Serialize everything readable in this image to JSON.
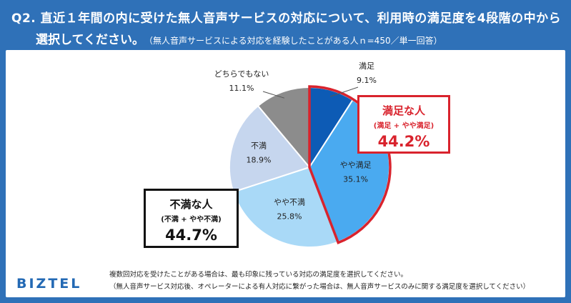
{
  "header": {
    "line1": "Q2. 直近１年間の内に受けた無人音声サービスの対応について、利用時の満足度を4段階の中から",
    "line2": "選択してください。",
    "note": "（無人音声サービスによる対応を経験したことがある人ｎ=450／単一回答）"
  },
  "chart_data": {
    "type": "pie",
    "start_angle_deg": 0,
    "direction": "clockwise",
    "slices": [
      {
        "label": "満足",
        "value": 9.1,
        "display": "9.1%",
        "color": "#0d5bb5",
        "label_outside": true
      },
      {
        "label": "やや満足",
        "value": 35.1,
        "display": "35.1%",
        "color": "#4aaaf0",
        "label_outside": false
      },
      {
        "label": "やや不満",
        "value": 25.8,
        "display": "25.8%",
        "color": "#a9d9f7",
        "label_outside": false
      },
      {
        "label": "不満",
        "value": 18.9,
        "display": "18.9%",
        "color": "#c6d6ee",
        "label_outside": false
      },
      {
        "label": "どちらでもない",
        "value": 11.1,
        "display": "11.1%",
        "color": "#8c8c8c",
        "label_outside": true
      }
    ],
    "highlight": {
      "slices": [
        "満足",
        "やや満足"
      ],
      "color": "#d9232d"
    }
  },
  "callouts": {
    "satisfied": {
      "title": "満足な人",
      "sub": "(満足 + やや満足)",
      "pct": "44.2%"
    },
    "dissatisfied": {
      "title": "不満な人",
      "sub": "(不満 + やや不満)",
      "pct": "44.7%"
    }
  },
  "logo": "BIZTEL",
  "footnotes": {
    "line1": "複数回対応を受けたことがある場合は、最も印象に残っている対応の満足度を選択してください。",
    "line2": "（無人音声サービス対応後、オペレーターによる有人対応に繋がった場合は、無人音声サービスのみに関する満足度を選択してください）"
  }
}
